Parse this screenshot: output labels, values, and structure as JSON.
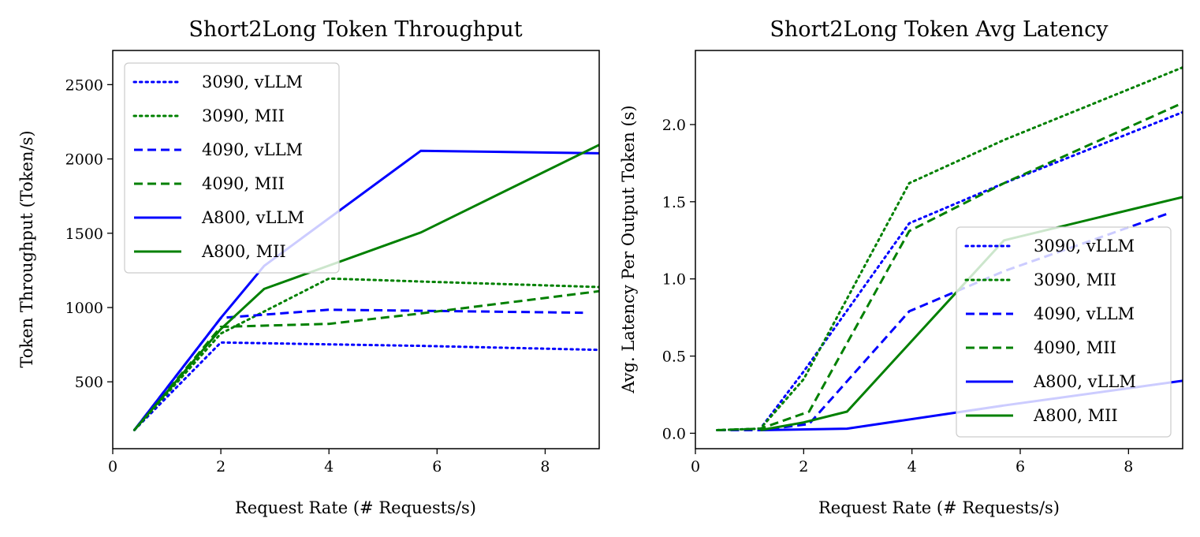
{
  "colors": {
    "vllm": "#0000ff",
    "mii": "#008000"
  },
  "chart_data": [
    {
      "type": "line",
      "title": "Short2Long Token Throughput",
      "xlabel": "Request Rate (# Requests/s)",
      "ylabel": "Token Throughput (Token/s)",
      "xlim": [
        0,
        9
      ],
      "ylim": [
        50,
        2730
      ],
      "xticks": [
        0,
        2,
        4,
        6,
        8
      ],
      "yticks": [
        500,
        1000,
        1500,
        2000,
        2500
      ],
      "legend": "upper-left",
      "series": [
        {
          "name": "3090, vLLM",
          "gpu": "3090",
          "framework": "vLLM",
          "style": "dotted",
          "color": "#0000ff",
          "x": [
            0.4,
            2.0,
            4.0,
            5.7,
            9.0
          ],
          "y": [
            175,
            765,
            752,
            742,
            715
          ]
        },
        {
          "name": "3090, MII",
          "gpu": "3090",
          "framework": "MII",
          "style": "dotted",
          "color": "#008000",
          "x": [
            0.4,
            2.0,
            4.0,
            5.7,
            9.0
          ],
          "y": [
            175,
            825,
            1195,
            1175,
            1138
          ]
        },
        {
          "name": "4090, vLLM",
          "gpu": "4090",
          "framework": "vLLM",
          "style": "dashed",
          "color": "#0000ff",
          "x": [
            0.4,
            2.0,
            4.0,
            5.7,
            8.7
          ],
          "y": [
            175,
            930,
            985,
            978,
            965
          ]
        },
        {
          "name": "4090, MII",
          "gpu": "4090",
          "framework": "MII",
          "style": "dashed",
          "color": "#008000",
          "x": [
            0.4,
            2.0,
            4.0,
            5.7,
            9.0
          ],
          "y": [
            175,
            870,
            890,
            960,
            1110
          ]
        },
        {
          "name": "A800, vLLM",
          "gpu": "A800",
          "framework": "vLLM",
          "style": "solid",
          "color": "#0000ff",
          "x": [
            0.4,
            2.0,
            2.8,
            5.7,
            9.0
          ],
          "y": [
            175,
            930,
            1280,
            2055,
            2038
          ]
        },
        {
          "name": "A800, MII",
          "gpu": "A800",
          "framework": "MII",
          "style": "solid",
          "color": "#008000",
          "x": [
            0.4,
            2.0,
            2.8,
            5.7,
            9.0
          ],
          "y": [
            175,
            855,
            1125,
            1505,
            2095
          ]
        }
      ]
    },
    {
      "type": "line",
      "title": "Short2Long Token Avg Latency",
      "xlabel": "Request Rate (# Requests/s)",
      "ylabel": "Avg. Latency Per Output Token (s)",
      "xlim": [
        0,
        9
      ],
      "ylim": [
        -0.1,
        2.48
      ],
      "xticks": [
        0,
        2,
        4,
        6,
        8
      ],
      "yticks": [
        0.0,
        0.5,
        1.0,
        1.5,
        2.0
      ],
      "ytick_labels": [
        "0.0",
        "0.5",
        "1.0",
        "1.5",
        "2.0"
      ],
      "legend": "lower-right",
      "series": [
        {
          "name": "3090, vLLM",
          "gpu": "3090",
          "framework": "vLLM",
          "style": "dotted",
          "color": "#0000ff",
          "x": [
            0.4,
            1.2,
            2.0,
            3.95,
            5.7,
            9.0
          ],
          "y": [
            0.02,
            0.03,
            0.4,
            1.36,
            1.62,
            2.08
          ]
        },
        {
          "name": "3090, MII",
          "gpu": "3090",
          "framework": "MII",
          "style": "dotted",
          "color": "#008000",
          "x": [
            0.4,
            1.2,
            2.0,
            3.95,
            5.7,
            9.0
          ],
          "y": [
            0.02,
            0.03,
            0.35,
            1.62,
            1.9,
            2.37
          ]
        },
        {
          "name": "4090, vLLM",
          "gpu": "4090",
          "framework": "vLLM",
          "style": "dashed",
          "color": "#0000ff",
          "x": [
            0.4,
            1.2,
            2.1,
            3.95,
            5.7,
            8.7
          ],
          "y": [
            0.02,
            0.02,
            0.06,
            0.79,
            1.05,
            1.42
          ]
        },
        {
          "name": "4090, MII",
          "gpu": "4090",
          "framework": "MII",
          "style": "dashed",
          "color": "#008000",
          "x": [
            0.4,
            1.2,
            2.1,
            3.95,
            5.7,
            9.0
          ],
          "y": [
            0.02,
            0.03,
            0.14,
            1.31,
            1.62,
            2.14
          ]
        },
        {
          "name": "A800, vLLM",
          "gpu": "A800",
          "framework": "vLLM",
          "style": "solid",
          "color": "#0000ff",
          "x": [
            1.2,
            2.8,
            5.7,
            9.0
          ],
          "y": [
            0.02,
            0.03,
            0.18,
            0.34
          ]
        },
        {
          "name": "A800, MII",
          "gpu": "A800",
          "framework": "MII",
          "style": "solid",
          "color": "#008000",
          "x": [
            1.2,
            2.0,
            2.8,
            5.7,
            9.0
          ],
          "y": [
            0.02,
            0.07,
            0.14,
            1.25,
            1.53
          ]
        }
      ]
    }
  ]
}
